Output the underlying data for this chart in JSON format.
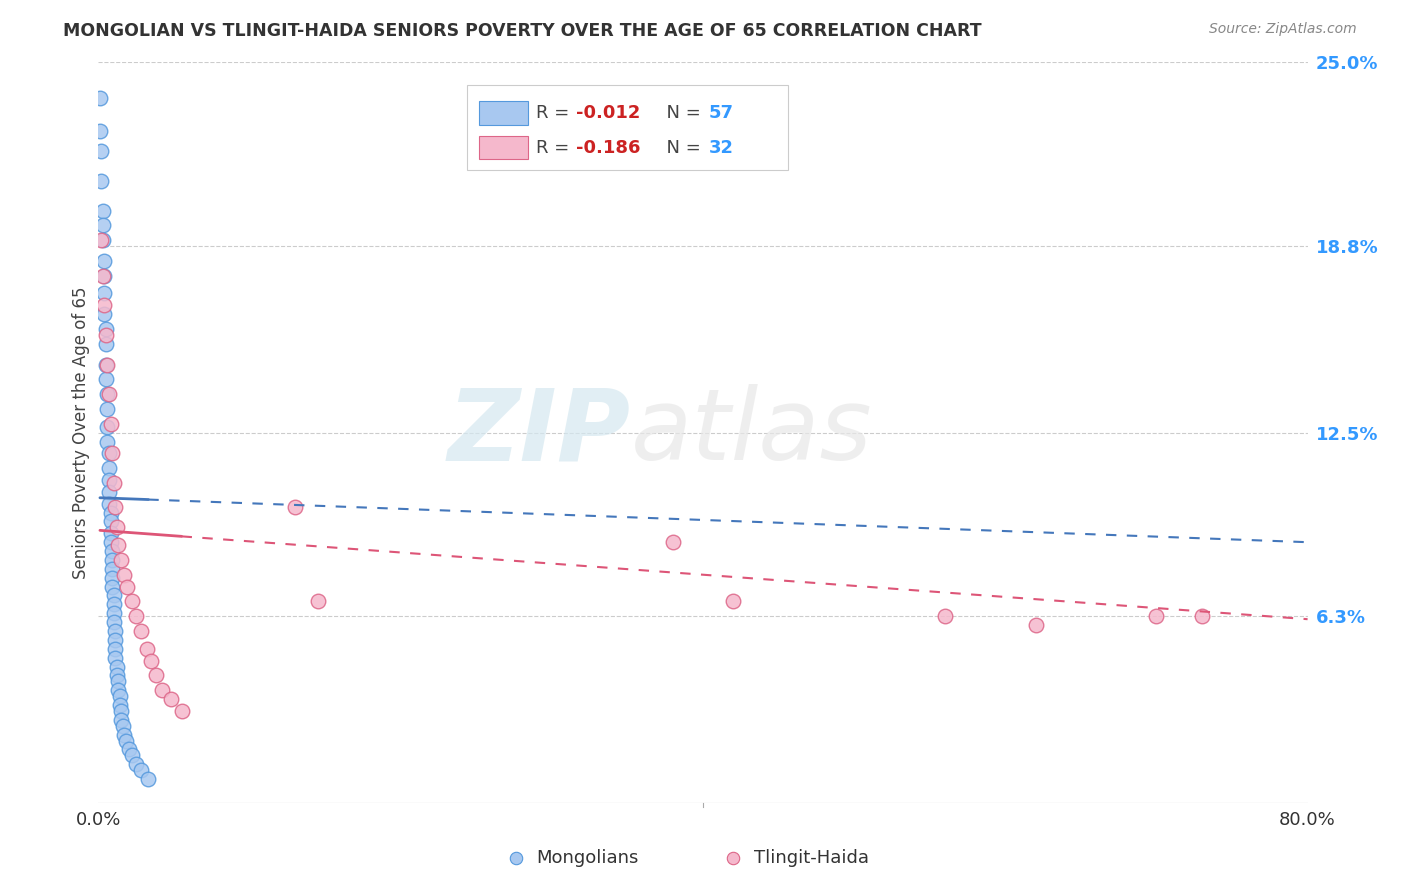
{
  "title": "MONGOLIAN VS TLINGIT-HAIDA SENIORS POVERTY OVER THE AGE OF 65 CORRELATION CHART",
  "source": "Source: ZipAtlas.com",
  "ylabel": "Seniors Poverty Over the Age of 65",
  "xlim": [
    0,
    0.8
  ],
  "ylim": [
    0,
    0.25
  ],
  "ytick_vals": [
    0.063,
    0.125,
    0.188,
    0.25
  ],
  "ytick_labels": [
    "6.3%",
    "12.5%",
    "18.8%",
    "25.0%"
  ],
  "mongolian_color": "#a8c8f0",
  "tlingit_color": "#f5b8cc",
  "mongolian_edge_color": "#5599dd",
  "tlingit_edge_color": "#dd6688",
  "mongolian_line_color": "#4477bb",
  "tlingit_line_color": "#dd5577",
  "background_color": "#ffffff",
  "watermark_zip": "ZIP",
  "watermark_atlas": "atlas",
  "mongo_x": [
    0.001,
    0.001,
    0.002,
    0.002,
    0.003,
    0.003,
    0.003,
    0.004,
    0.004,
    0.004,
    0.004,
    0.005,
    0.005,
    0.005,
    0.005,
    0.006,
    0.006,
    0.006,
    0.006,
    0.007,
    0.007,
    0.007,
    0.007,
    0.007,
    0.008,
    0.008,
    0.008,
    0.008,
    0.009,
    0.009,
    0.009,
    0.009,
    0.009,
    0.01,
    0.01,
    0.01,
    0.01,
    0.011,
    0.011,
    0.011,
    0.011,
    0.012,
    0.012,
    0.013,
    0.013,
    0.014,
    0.014,
    0.015,
    0.015,
    0.016,
    0.017,
    0.018,
    0.02,
    0.022,
    0.025,
    0.028,
    0.033
  ],
  "mongo_y": [
    0.238,
    0.227,
    0.22,
    0.21,
    0.2,
    0.195,
    0.19,
    0.183,
    0.178,
    0.172,
    0.165,
    0.16,
    0.155,
    0.148,
    0.143,
    0.138,
    0.133,
    0.127,
    0.122,
    0.118,
    0.113,
    0.109,
    0.105,
    0.101,
    0.098,
    0.095,
    0.091,
    0.088,
    0.085,
    0.082,
    0.079,
    0.076,
    0.073,
    0.07,
    0.067,
    0.064,
    0.061,
    0.058,
    0.055,
    0.052,
    0.049,
    0.046,
    0.043,
    0.041,
    0.038,
    0.036,
    0.033,
    0.031,
    0.028,
    0.026,
    0.023,
    0.021,
    0.018,
    0.016,
    0.013,
    0.011,
    0.008
  ],
  "tlingit_x": [
    0.002,
    0.003,
    0.004,
    0.005,
    0.006,
    0.007,
    0.008,
    0.009,
    0.01,
    0.011,
    0.012,
    0.013,
    0.015,
    0.017,
    0.019,
    0.022,
    0.025,
    0.028,
    0.032,
    0.035,
    0.038,
    0.042,
    0.048,
    0.055,
    0.13,
    0.145,
    0.38,
    0.42,
    0.56,
    0.62,
    0.7,
    0.73
  ],
  "tlingit_y": [
    0.19,
    0.178,
    0.168,
    0.158,
    0.148,
    0.138,
    0.128,
    0.118,
    0.108,
    0.1,
    0.093,
    0.087,
    0.082,
    0.077,
    0.073,
    0.068,
    0.063,
    0.058,
    0.052,
    0.048,
    0.043,
    0.038,
    0.035,
    0.031,
    0.1,
    0.068,
    0.088,
    0.068,
    0.063,
    0.06,
    0.063,
    0.063
  ],
  "mongo_line_x": [
    0.001,
    0.035
  ],
  "mongo_line_y_intercept": 0.102,
  "mongo_line_slope": -0.15,
  "tlingit_line_x": [
    0.001,
    0.8
  ],
  "tlingit_line_y_intercept": 0.093,
  "tlingit_line_slope": -0.043
}
